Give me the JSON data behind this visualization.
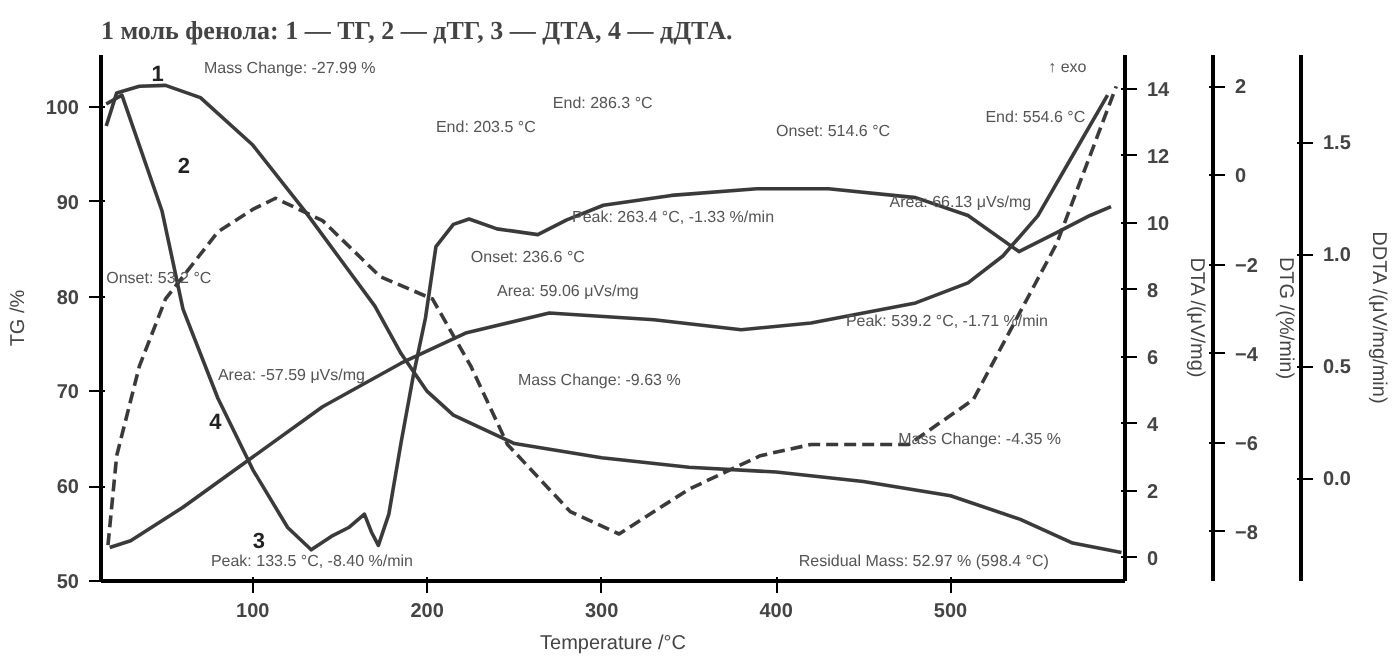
{
  "chart_data": [
    {
      "type": "line",
      "title": "1 моль фенола: 1 — ТГ, 2 — дТГ, 3 — ДТА, 4 — дДТА.",
      "xlabel": "Temperature /°C",
      "ylabel": "TG /%",
      "y2label": "DTA /(μV/mg)",
      "y3label": "DTG /(%/min)",
      "xlim": [
        13,
        600
      ],
      "xticks": [
        100,
        200,
        300,
        400,
        500
      ],
      "ylim": [
        50,
        105.5
      ],
      "yticks": [
        50,
        60,
        70,
        80,
        90,
        100
      ],
      "y2lim": [
        -0.7,
        15
      ],
      "y2ticks": [
        0,
        2,
        4,
        6,
        8,
        10,
        12,
        14
      ],
      "y3lim": [
        -9.1,
        2.7
      ],
      "y3ticks": [
        -8,
        -6,
        -4,
        -2,
        0,
        2
      ],
      "grid": false,
      "marker": "none",
      "series": [
        {
          "color": "#3a3a3a",
          "line_style": "solid",
          "x": [
            16,
            22,
            35,
            50,
            70,
            100,
            130,
            150,
            170,
            185,
            200,
            215,
            250,
            300,
            350,
            400,
            450,
            500,
            540,
            570,
            598
          ],
          "values": [
            98,
            101.5,
            102.2,
            102.3,
            101,
            96,
            89,
            84,
            79,
            74,
            70,
            67.5,
            64.5,
            63,
            62,
            61.5,
            60.5,
            59,
            56.5,
            54,
            53
          ]
        },
        {
          "color": "#3a3a3a",
          "axis": "y3",
          "line_style": "solid",
          "x": [
            16,
            25,
            48,
            60,
            80,
            100,
            120,
            133.5,
            145,
            155,
            164,
            168,
            172,
            178,
            185,
            192,
            199,
            205,
            215,
            224,
            240,
            263.4,
            280,
            301,
            340,
            389,
            430,
            480,
            510,
            539.2,
            560,
            580,
            592
          ],
          "values": [
            1.6,
            1.8,
            -0.8,
            -3.0,
            -5.0,
            -6.6,
            -7.9,
            -8.4,
            -8.1,
            -7.9,
            -7.6,
            -8.0,
            -8.3,
            -7.6,
            -6.0,
            -4.5,
            -3.2,
            -1.6,
            -1.1,
            -0.98,
            -1.2,
            -1.33,
            -1.0,
            -0.67,
            -0.45,
            -0.3,
            -0.3,
            -0.5,
            -0.9,
            -1.71,
            -1.3,
            -0.9,
            -0.7
          ]
        },
        {
          "color": "#3a3a3a",
          "axis": "y2",
          "line_style": "solid",
          "x": [
            18,
            30,
            60,
            100,
            140,
            185,
            222,
            270,
            330,
            380,
            420,
            480,
            510,
            530,
            550,
            570,
            590
          ],
          "values": [
            0.3,
            0.5,
            1.5,
            3.0,
            4.5,
            5.8,
            6.7,
            7.3,
            7.1,
            6.8,
            7.0,
            7.6,
            8.2,
            9.0,
            10.2,
            12.0,
            13.8
          ]
        }
      ],
      "annotations": [
        "1",
        "2",
        "3",
        "4",
        "↑ exo",
        "Mass Change: -27.99 %",
        "End: 203.5 °C",
        "End: 286.3 °C",
        "Onset: 514.6 °C",
        "End: 554.6 °C",
        "Peak: 263.4 °C, -1.33 %/min",
        "Onset: 236.6 °C",
        "Area: 66.13 μVs/mg",
        "Onset: 53.2 °C",
        "Area: 59.06 μVs/mg",
        "Mass Change: -9.63 %",
        "Area: -57.59 μVs/mg",
        "Peak: 539.2 °C, -1.71 %/min",
        "Mass Change: -4.35 %",
        "Peak: 133.5 °C, -8.40 %/min",
        "Residual Mass: 52.97 % (598.4 °C)"
      ]
    },
    {
      "type": "line",
      "ylabel": "DDTA /(μV/mg/min)",
      "tick_labels": "y",
      "xlim": [
        13,
        600
      ],
      "ylim": [
        -0.46,
        1.89
      ],
      "yticks": [
        {
          "value": 0,
          "label": "0.0"
        },
        {
          "value": 0.5,
          "label": "0.5"
        },
        {
          "value": 1,
          "label": "1.0"
        },
        {
          "value": 1.5,
          "label": "1.5"
        }
      ],
      "grid": false,
      "marker": "none",
      "series": [
        {
          "color": "#3a3a3a",
          "line_style": "dashed",
          "x": [
            17,
            22,
            35,
            50,
            60,
            80,
            100,
            113,
            140,
            173,
            203,
            225,
            246,
            282,
            310,
            350,
            391,
            420,
            476,
            513,
            537,
            561,
            595
          ],
          "values": [
            -0.3,
            0.1,
            0.5,
            0.8,
            0.9,
            1.1,
            1.2,
            1.25,
            1.15,
            0.9,
            0.8,
            0.5,
            0.15,
            -0.15,
            -0.25,
            -0.05,
            0.1,
            0.15,
            0.15,
            0.35,
            0.7,
            1.05,
            1.75
          ]
        }
      ]
    }
  ]
}
